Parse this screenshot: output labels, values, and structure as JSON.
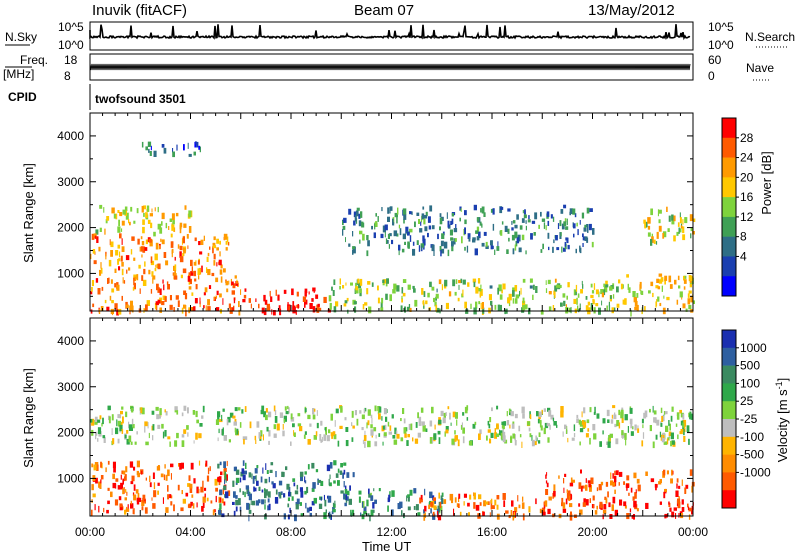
{
  "header": {
    "site": "Inuvik (fitACF)",
    "beam": "Beam 07",
    "date": "13/May/2012"
  },
  "top_panels": {
    "nsky_label": "N.Sky",
    "nsky_ticks": [
      "10^5",
      "10^0"
    ],
    "nsearch_label": "N.Search",
    "nsearch_ticks": [
      "10^5",
      "10^0"
    ],
    "freq_label_1": "Freq.",
    "freq_label_2": "[MHz]",
    "freq_ticks": [
      "18",
      "8"
    ],
    "nave_label": "Nave",
    "nave_ticks": [
      "60",
      "0"
    ],
    "cpid_label": "CPID",
    "cpid_value": "twofsound 3501"
  },
  "chart_data": [
    {
      "type": "heatmap",
      "panel": "power",
      "ylabel": "Slant Range [km]",
      "ylim": [
        180,
        4500
      ],
      "yticks": [
        1000,
        2000,
        3000,
        4000
      ],
      "xlim_hours": [
        0,
        24
      ],
      "colorbar": {
        "label": "Power [dB]",
        "tick_labels": [
          "28",
          "24",
          "20",
          "16",
          "12",
          "8",
          "4"
        ],
        "colors": [
          "#ff0000",
          "#ff5a00",
          "#ff9a00",
          "#ffc800",
          "#7ed33c",
          "#3fa055",
          "#2e6e86",
          "#1a3fb0",
          "#0000ff"
        ]
      },
      "scatter_bands": [
        {
          "t": [
            0.2,
            4.0
          ],
          "r": [
            1900,
            2500
          ],
          "level": 0.6
        },
        {
          "t": [
            0.0,
            5.5
          ],
          "r": [
            1000,
            1900
          ],
          "level": 0.75
        },
        {
          "t": [
            0.0,
            6.0
          ],
          "r": [
            200,
            1000
          ],
          "level": 0.8
        },
        {
          "t": [
            6.0,
            9.5
          ],
          "r": [
            180,
            700
          ],
          "level": 0.95
        },
        {
          "t": [
            9.5,
            21.0
          ],
          "r": [
            200,
            900
          ],
          "level": 0.5
        },
        {
          "t": [
            10.0,
            20.0
          ],
          "r": [
            1500,
            2500
          ],
          "level": 0.3
        },
        {
          "t": [
            21.0,
            24.0
          ],
          "r": [
            200,
            1000
          ],
          "level": 0.6
        },
        {
          "t": [
            22.0,
            24.0
          ],
          "r": [
            1700,
            2500
          ],
          "level": 0.55
        },
        {
          "t": [
            2.0,
            4.5
          ],
          "r": [
            3600,
            3900
          ],
          "level": 0.25
        }
      ]
    },
    {
      "type": "heatmap",
      "panel": "velocity",
      "ylabel": "Slant Range [km]",
      "ylim": [
        180,
        4500
      ],
      "yticks": [
        1000,
        2000,
        3000,
        4000
      ],
      "xlim_hours": [
        0,
        24
      ],
      "xlabel": "Time UT",
      "xtick_labels": [
        "00:00",
        "04:00",
        "08:00",
        "12:00",
        "16:00",
        "20:00",
        "00:00"
      ],
      "colorbar": {
        "label": "Velocity [m s-1]",
        "tick_labels": [
          "1000",
          "500",
          "100",
          "25",
          "-25",
          "-100",
          "-500",
          "-1000"
        ],
        "colors": [
          "#1a2fb0",
          "#2e5fa0",
          "#3a8a60",
          "#2fa84a",
          "#7ed33c",
          "#bebebe",
          "#ffb400",
          "#ff8c00",
          "#ff5a00",
          "#ff0000"
        ]
      },
      "scatter_bands": [
        {
          "t": [
            0.0,
            4.5
          ],
          "r": [
            1800,
            2600
          ],
          "level": 0.0
        },
        {
          "t": [
            0.0,
            5.5
          ],
          "r": [
            300,
            1400
          ],
          "level": -0.7
        },
        {
          "t": [
            5.0,
            10.5
          ],
          "r": [
            200,
            1400
          ],
          "level": 0.6
        },
        {
          "t": [
            10.0,
            14.0
          ],
          "r": [
            200,
            800
          ],
          "level": 0.5
        },
        {
          "t": [
            13.0,
            18.0
          ],
          "r": [
            200,
            700
          ],
          "level": -0.55
        },
        {
          "t": [
            18.0,
            24.0
          ],
          "r": [
            200,
            1200
          ],
          "level": -0.75
        },
        {
          "t": [
            5.0,
            24.0
          ],
          "r": [
            1800,
            2600
          ],
          "level": 0.0
        },
        {
          "t": [
            22.5,
            24.0
          ],
          "r": [
            1800,
            2500
          ],
          "level": 0.0
        }
      ]
    }
  ]
}
